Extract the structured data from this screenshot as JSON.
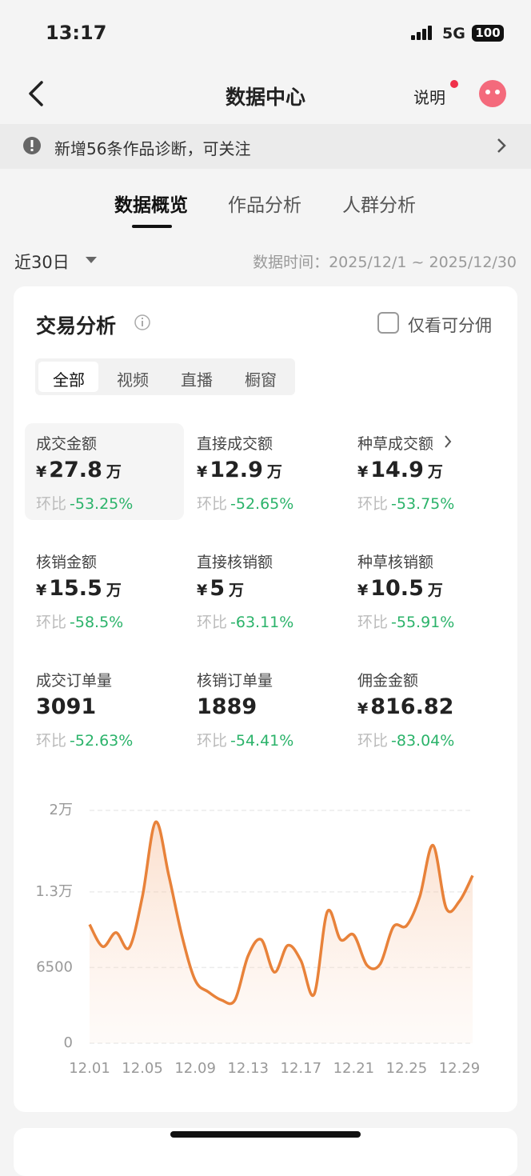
{
  "status_bar": {
    "time": "13:17",
    "network": "5G",
    "battery": "100"
  },
  "header": {
    "title": "数据中心",
    "help": "说明"
  },
  "notice": {
    "text": "新增56条作品诊断，可关注"
  },
  "tabs": {
    "items": [
      "数据概览",
      "作品分析",
      "人群分析"
    ],
    "active": 0
  },
  "filter": {
    "range": "近30日",
    "time_range": "数据时间：2025/12/1 ~ 2025/12/30"
  },
  "card": {
    "title": "交易分析",
    "checkbox": "仅看可分佣",
    "segments": {
      "items": [
        "全部",
        "视频",
        "直播",
        "橱窗"
      ],
      "active": 0
    },
    "metrics": [
      {
        "label": "成交金额",
        "currency": "¥",
        "value": "27.8",
        "unit": "万",
        "compare_label": "环比",
        "change": "-53.25%"
      },
      {
        "label": "直接成交额",
        "currency": "¥",
        "value": "12.9",
        "unit": "万",
        "compare_label": "环比",
        "change": "-52.65%"
      },
      {
        "label": "种草成交额",
        "currency": "¥",
        "value": "14.9",
        "unit": "万",
        "compare_label": "环比",
        "change": "-53.75%"
      },
      {
        "label": "核销金额",
        "currency": "¥",
        "value": "15.5",
        "unit": "万",
        "compare_label": "环比",
        "change": "-58.5%"
      },
      {
        "label": "直接核销额",
        "currency": "¥",
        "value": "5",
        "unit": "万",
        "compare_label": "环比",
        "change": "-63.11%"
      },
      {
        "label": "种草核销额",
        "currency": "¥",
        "value": "10.5",
        "unit": "万",
        "compare_label": "环比",
        "change": "-55.91%"
      },
      {
        "label": "成交订单量",
        "value": "3091",
        "compare_label": "环比",
        "change": "-52.63%"
      },
      {
        "label": "核销订单量",
        "value": "1889",
        "compare_label": "环比",
        "change": "-54.41%"
      },
      {
        "label": "佣金金额",
        "currency": "¥",
        "value": "816.82",
        "compare_label": "环比",
        "change": "-83.04%"
      }
    ]
  },
  "chart_data": {
    "type": "area",
    "color": "#e8823a",
    "grid": true,
    "categories": [
      "12.01",
      null,
      null,
      null,
      "12.05",
      null,
      null,
      null,
      "12.09",
      null,
      null,
      null,
      "12.13",
      null,
      null,
      null,
      "12.17",
      null,
      null,
      null,
      "12.21",
      null,
      null,
      null,
      "12.25",
      null,
      null,
      null,
      "12.29",
      null
    ],
    "values": [
      10200,
      8300,
      9500,
      8200,
      12600,
      19000,
      14400,
      9200,
      5400,
      4400,
      3700,
      3700,
      7500,
      8900,
      6100,
      8400,
      7100,
      4200,
      11300,
      8900,
      9300,
      6700,
      6800,
      10000,
      10100,
      12600,
      17000,
      11600,
      12200,
      14400
    ],
    "ylim": [
      0,
      20000
    ],
    "yticks": [
      0,
      6500,
      {
        "value": 13000,
        "label": "1.3万"
      },
      {
        "value": 20000,
        "label": "2万"
      }
    ]
  }
}
